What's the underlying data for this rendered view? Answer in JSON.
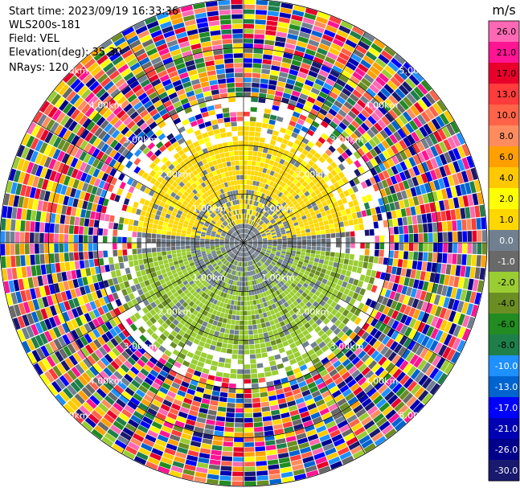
{
  "header": {
    "start_time": "Start time: 2023/09/19 16:33:36",
    "instrument": "WLS200s-181",
    "field": "Field: VEL",
    "elevation": "Elevation(deg): 35.30",
    "nrays": "NRays: 120"
  },
  "chart_data": {
    "type": "heatmap",
    "projection": "polar-ppi",
    "field": "VEL",
    "units": "m/s",
    "n_rays": 120,
    "range_max_km": 5.0,
    "range_gate_km": 0.1,
    "range_ring_labels": [
      "1.00km",
      "2.00km",
      "3.00km",
      "4.00km",
      "5.00km"
    ],
    "range_rings_km": [
      1,
      2,
      3,
      4,
      5
    ],
    "azimuth_grid_deg": [
      0,
      30,
      60,
      90,
      120,
      150,
      180,
      210,
      240,
      270,
      300,
      330
    ],
    "colorbar": {
      "label": "m/s",
      "ticks": [
        "26.0",
        "21.0",
        "17.0",
        "13.0",
        "10.0",
        "8.0",
        "6.0",
        "4.0",
        "2.0",
        "1.0",
        "0.0",
        "-1.0",
        "-2.0",
        "-4.0",
        "-6.0",
        "-8.0",
        "-10.0",
        "-13.0",
        "-17.0",
        "-21.0",
        "-26.0",
        "-30.0"
      ],
      "colors": [
        "#ff69b4",
        "#ff1493",
        "#e8002a",
        "#ff3b3b",
        "#ff6347",
        "#ff8c60",
        "#ffa000",
        "#ffc800",
        "#ffff00",
        "#ffd700",
        "#708090",
        "#696969",
        "#9acd32",
        "#6b8e23",
        "#228b22",
        "#1e7f4a",
        "#1e90ff",
        "#0064d0",
        "#0000ff",
        "#0000b4",
        "#00008b",
        "#191970"
      ]
    },
    "regions": [
      {
        "range_km": [
          0.0,
          2.5
        ],
        "azimuth_deg": [
          275,
          85
        ],
        "value_mps": 1.0,
        "description": "positive radial velocity, north sector"
      },
      {
        "range_km": [
          0.0,
          2.8
        ],
        "azimuth_deg": [
          95,
          265
        ],
        "value_mps": -1.5,
        "description": "negative radial velocity, south sector"
      },
      {
        "range_km": [
          0.0,
          1.2
        ],
        "azimuth_deg": [
          0,
          360
        ],
        "value_mps": 0.0,
        "description": "near-zero core"
      },
      {
        "range_km": [
          3.0,
          5.0
        ],
        "azimuth_deg": [
          0,
          360
        ],
        "value_mps": null,
        "description": "noise, all values"
      }
    ]
  }
}
